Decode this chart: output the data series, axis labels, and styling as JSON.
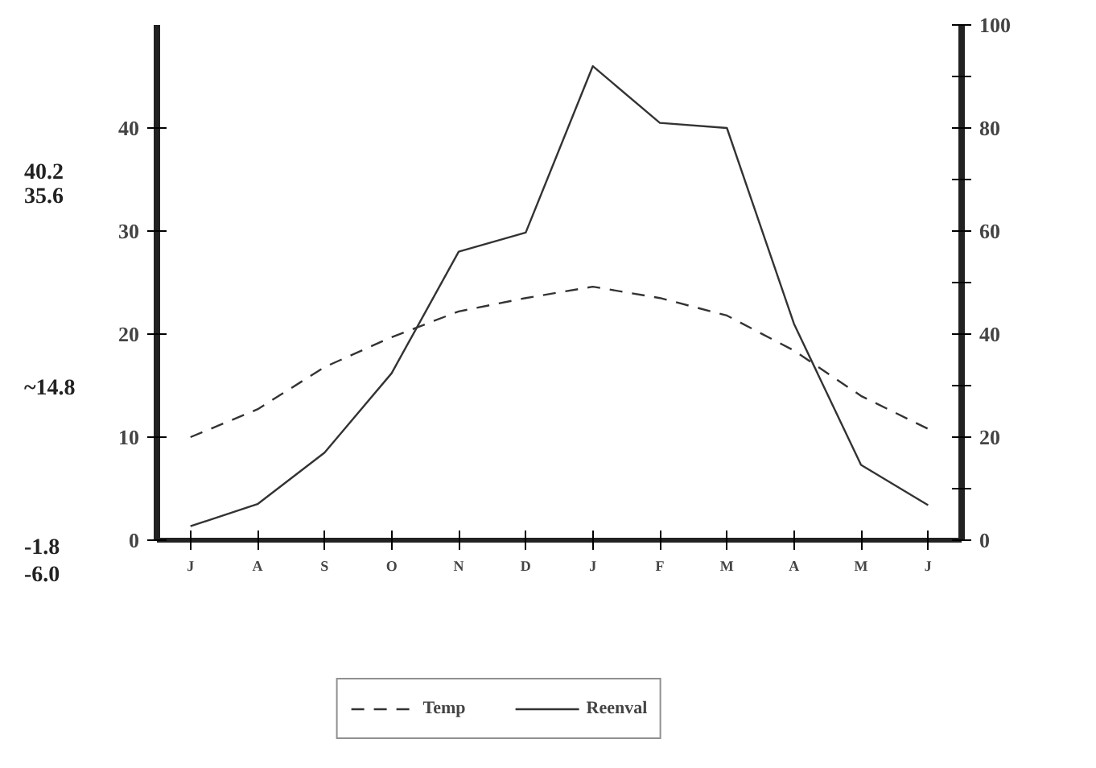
{
  "chart_data": {
    "type": "line",
    "categories": [
      "J",
      "A",
      "S",
      "O",
      "N",
      "D",
      "J",
      "F",
      "M",
      "A",
      "M",
      "J"
    ],
    "series": [
      {
        "name": "Temp",
        "color": "#333333",
        "line_style": "dashed",
        "values": [
          10.0,
          12.7,
          16.8,
          19.7,
          22.2,
          23.5,
          24.6,
          23.5,
          21.8,
          18.4,
          14.0,
          10.8
        ]
      },
      {
        "name": "Reenval",
        "color": "#333333",
        "line_style": "solid",
        "axis": "y2",
        "values": [
          2.7,
          7,
          17,
          32.4,
          56,
          59.7,
          92,
          81,
          80,
          42,
          14.6,
          6.8
        ]
      }
    ],
    "ylim": [
      0,
      50
    ],
    "yticks": [
      0,
      10,
      20,
      30,
      40
    ],
    "y2lim": [
      0,
      100
    ],
    "y2ticks": [
      0,
      {
        "value": 10,
        "label": null
      },
      20,
      {
        "value": 30,
        "label": null
      },
      40,
      {
        "value": 50,
        "label": null
      },
      60,
      {
        "value": 70,
        "label": null
      },
      80,
      {
        "value": 90,
        "label": null
      },
      100
    ],
    "annotations": [
      "40.2",
      "35.6",
      "~14.8",
      "-1.8",
      "-6.0"
    ],
    "grid": false,
    "legend": "bottom",
    "marker": "none"
  }
}
